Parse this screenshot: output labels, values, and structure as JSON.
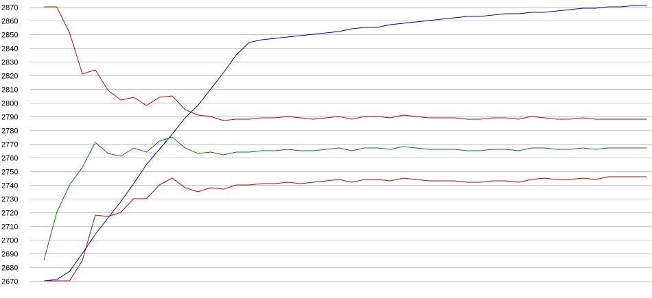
{
  "chart_data": {
    "type": "line",
    "title": "",
    "xlabel": "",
    "ylabel": "",
    "ylim": [
      2670,
      2870
    ],
    "yticks": [
      2670,
      2680,
      2690,
      2700,
      2710,
      2720,
      2730,
      2740,
      2750,
      2760,
      2770,
      2780,
      2790,
      2800,
      2810,
      2820,
      2830,
      2840,
      2850,
      2860,
      2870
    ],
    "grid": true,
    "legend": "none",
    "x": [
      1,
      2,
      3,
      4,
      5,
      6,
      7,
      8,
      9,
      10,
      11,
      12,
      13,
      14,
      15,
      16,
      17,
      18,
      19,
      20,
      21,
      22,
      23,
      24,
      25,
      26,
      27,
      28,
      29,
      30,
      31,
      32,
      33,
      34,
      35,
      36,
      37,
      38,
      39,
      40,
      41,
      42,
      43,
      44,
      45,
      46,
      47,
      48
    ],
    "xlim": [
      1,
      48.4
    ],
    "series": [
      {
        "color": "#0000c0",
        "values": [
          2670,
          2671,
          2677,
          2690,
          2704,
          2716,
          2728,
          2741,
          2755,
          2766,
          2777,
          2789,
          2798,
          2810,
          2822,
          2835,
          2844,
          2846,
          2847,
          2848,
          2849,
          2850,
          2851,
          2852,
          2854,
          2855,
          2855,
          2857,
          2858,
          2859,
          2860,
          2861,
          2862,
          2863,
          2863,
          2864,
          2865,
          2865,
          2866,
          2866,
          2867,
          2868,
          2869,
          2869,
          2870,
          2870,
          2871,
          2871
        ]
      },
      {
        "color": "#c00000",
        "values": [
          2870,
          2870,
          2851,
          2821,
          2824,
          2809,
          2802,
          2804,
          2798,
          2804,
          2805,
          2795,
          2791,
          2790,
          2787,
          2788,
          2788,
          2789,
          2789,
          2790,
          2789,
          2788,
          2789,
          2790,
          2788,
          2790,
          2790,
          2789,
          2791,
          2790,
          2789,
          2789,
          2789,
          2788,
          2788,
          2789,
          2789,
          2788,
          2790,
          2789,
          2788,
          2788,
          2789,
          2788,
          2788,
          2788,
          2788,
          2788
        ]
      },
      {
        "color": "#008000",
        "values": [
          2685,
          2720,
          2740,
          2753,
          2771,
          2763,
          2761,
          2767,
          2764,
          2772,
          2775,
          2767,
          2763,
          2764,
          2762,
          2764,
          2764,
          2765,
          2765,
          2766,
          2765,
          2765,
          2766,
          2767,
          2765,
          2767,
          2767,
          2766,
          2768,
          2767,
          2766,
          2766,
          2766,
          2765,
          2765,
          2766,
          2766,
          2765,
          2767,
          2767,
          2766,
          2766,
          2767,
          2766,
          2767,
          2767,
          2767,
          2767
        ]
      },
      {
        "color": "#c00000",
        "values": [
          2670,
          2670,
          2670,
          2685,
          2718,
          2717,
          2720,
          2730,
          2730,
          2740,
          2745,
          2738,
          2735,
          2738,
          2737,
          2740,
          2740,
          2741,
          2741,
          2742,
          2741,
          2742,
          2743,
          2744,
          2742,
          2744,
          2744,
          2743,
          2745,
          2744,
          2743,
          2743,
          2743,
          2742,
          2742,
          2743,
          2743,
          2742,
          2744,
          2745,
          2744,
          2744,
          2745,
          2744,
          2746,
          2746,
          2746,
          2746
        ]
      }
    ]
  }
}
